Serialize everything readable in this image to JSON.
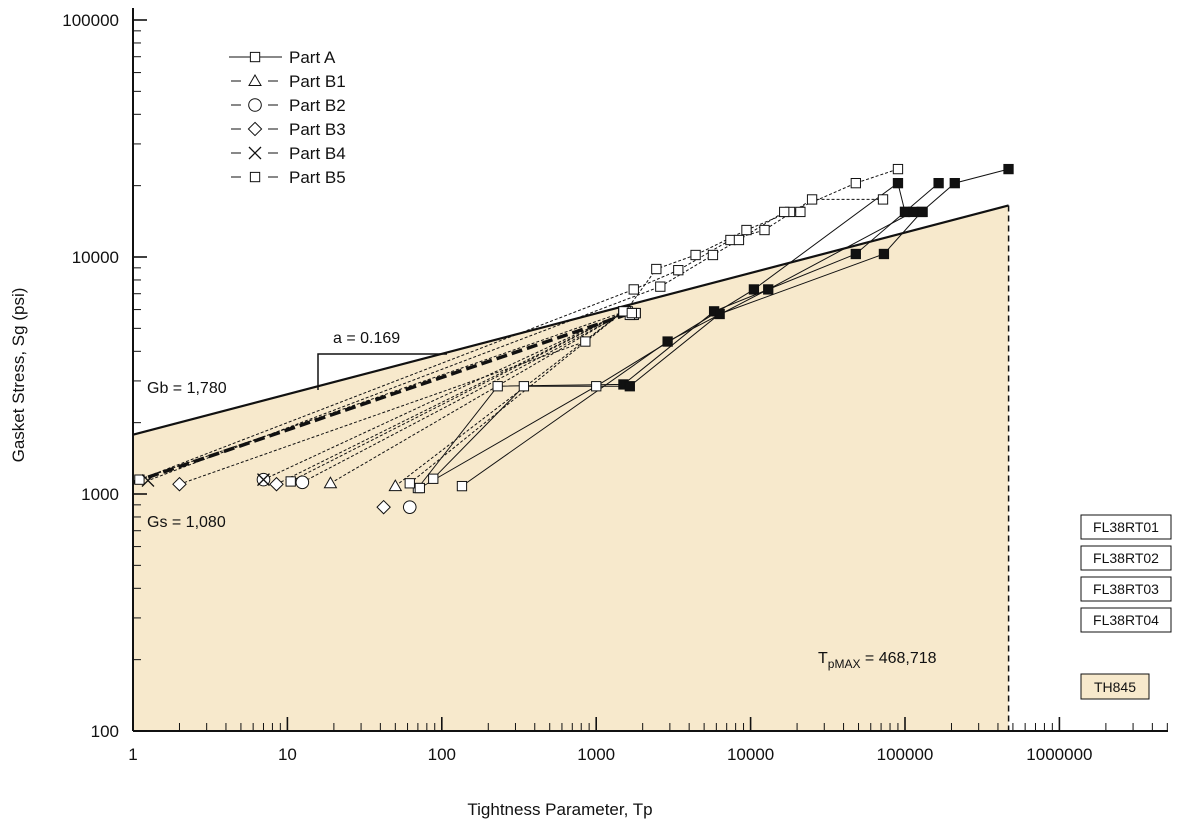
{
  "chart_data": {
    "type": "scatter",
    "title": "",
    "xlabel": "Tightness Parameter, Tp",
    "ylabel": "Gasket Stress, Sg (psi)",
    "xscale": "log",
    "yscale": "log",
    "xlim": [
      1,
      5000000
    ],
    "ylim": [
      100,
      100000
    ],
    "xticks": [
      "1",
      "10",
      "100",
      "1000",
      "10000",
      "100000",
      "1000000"
    ],
    "yticks": [
      "100",
      "1000",
      "10000",
      "100000"
    ],
    "legend_placement": "top-left",
    "legend": [
      {
        "label": "Part A",
        "marker": "square"
      },
      {
        "label": "Part B1",
        "marker": "triangle"
      },
      {
        "label": "Part B2",
        "marker": "circle"
      },
      {
        "label": "Part B3",
        "marker": "diamond"
      },
      {
        "label": "Part B4",
        "marker": "x"
      },
      {
        "label": "Part B5",
        "marker": "square"
      }
    ],
    "annotations": {
      "gb": "Gb = 1,780",
      "gs": "Gs = 1,080",
      "slope": "a = 0.169",
      "tpmax_main": "T",
      "tpmax_sub": "pMAX",
      "tpmax_value": " = 468,718"
    },
    "fit_lines": {
      "upper_bound": {
        "x": [
          1,
          468718
        ],
        "y": [
          1780,
          16500
        ]
      },
      "mean_dashed": {
        "x": [
          1,
          1550
        ],
        "y": [
          1120,
          5700
        ]
      },
      "tpmax": 468718
    },
    "part_a_series": [
      {
        "name": "",
        "x": [
          70,
          230,
          1500,
          5800,
          48000,
          100000,
          165000
        ],
        "y": [
          1060,
          2850,
          2900,
          5900,
          10300,
          15500,
          20500
        ]
      },
      {
        "name": "",
        "x": [
          88,
          340,
          1650,
          6300,
          73000,
          128000,
          210000,
          468000
        ],
        "y": [
          1160,
          2850,
          2850,
          5750,
          10300,
          15500,
          20500,
          23500
        ]
      },
      {
        "name": "",
        "x": [
          72,
          1000,
          10500,
          90000,
          100000
        ],
        "y": [
          1060,
          2850,
          7300,
          20500,
          15500
        ]
      },
      {
        "name": "",
        "x": [
          135,
          2900,
          13000,
          113000,
          130000
        ],
        "y": [
          1080,
          4400,
          7300,
          15500,
          15500
        ]
      }
    ],
    "part_b_series": [
      {
        "name": "",
        "x": [
          1.1,
          1550,
          2450,
          4400,
          9400,
          18000,
          48000,
          90000
        ],
        "y": [
          1150,
          5900,
          8900,
          10200,
          13000,
          15500,
          20500,
          23500
        ]
      },
      {
        "name": "",
        "x": [
          1.1,
          1750,
          3400,
          7400,
          12300,
          25000,
          72000
        ],
        "y": [
          1150,
          7300,
          8800,
          11800,
          13000,
          17500,
          17500
        ]
      },
      {
        "name": "",
        "x": [
          1.3,
          2600,
          5700,
          8400,
          16500,
          21000
        ],
        "y": [
          1150,
          7500,
          10200,
          11800,
          15500,
          15500
        ]
      },
      {
        "name": "",
        "x": [
          2,
          850,
          1500
        ],
        "y": [
          1100,
          4400,
          5900
        ]
      },
      {
        "name": "",
        "x": [
          7,
          1550,
          1750
        ],
        "y": [
          1150,
          5900,
          5800
        ]
      },
      {
        "name": "",
        "x": [
          8.5,
          1550,
          1700
        ],
        "y": [
          1100,
          5900,
          5700
        ]
      },
      {
        "name": "",
        "x": [
          10.5,
          1550,
          1750
        ],
        "y": [
          1130,
          5900,
          5700
        ]
      },
      {
        "name": "",
        "x": [
          12.5,
          1600,
          1800
        ],
        "y": [
          1120,
          5900,
          5800
        ]
      },
      {
        "name": "",
        "x": [
          19,
          1550,
          1800
        ],
        "y": [
          1110,
          5900,
          5800
        ]
      },
      {
        "name": "",
        "x": [
          50,
          1500,
          1650
        ],
        "y": [
          1080,
          5900,
          5700
        ]
      },
      {
        "name": "",
        "x": [
          62,
          1500,
          1700
        ],
        "y": [
          1110,
          5900,
          5800
        ]
      }
    ],
    "loose_markers": [
      {
        "x": 1.1,
        "y": 1150,
        "marker": "square"
      },
      {
        "x": 1.25,
        "y": 1140,
        "marker": "x"
      },
      {
        "x": 2,
        "y": 1100,
        "marker": "diamond"
      },
      {
        "x": 7,
        "y": 1150,
        "marker": "circle"
      },
      {
        "x": 7,
        "y": 1150,
        "marker": "x"
      },
      {
        "x": 8.5,
        "y": 1100,
        "marker": "diamond"
      },
      {
        "x": 10.5,
        "y": 1130,
        "marker": "square"
      },
      {
        "x": 12.5,
        "y": 1120,
        "marker": "circle"
      },
      {
        "x": 19,
        "y": 1110,
        "marker": "triangle"
      },
      {
        "x": 42,
        "y": 880,
        "marker": "diamond"
      },
      {
        "x": 50,
        "y": 1080,
        "marker": "triangle"
      },
      {
        "x": 62,
        "y": 1110,
        "marker": "square"
      },
      {
        "x": 62,
        "y": 880,
        "marker": "circle"
      }
    ],
    "test_labels": [
      "FL38RT01",
      "FL38RT02",
      "FL38RT03",
      "FL38RT04"
    ],
    "gasket_label": "TH845",
    "colors": {
      "fill": "#f7e9cc",
      "gasket_box": "#f7e9cc",
      "line": "#111111"
    }
  }
}
